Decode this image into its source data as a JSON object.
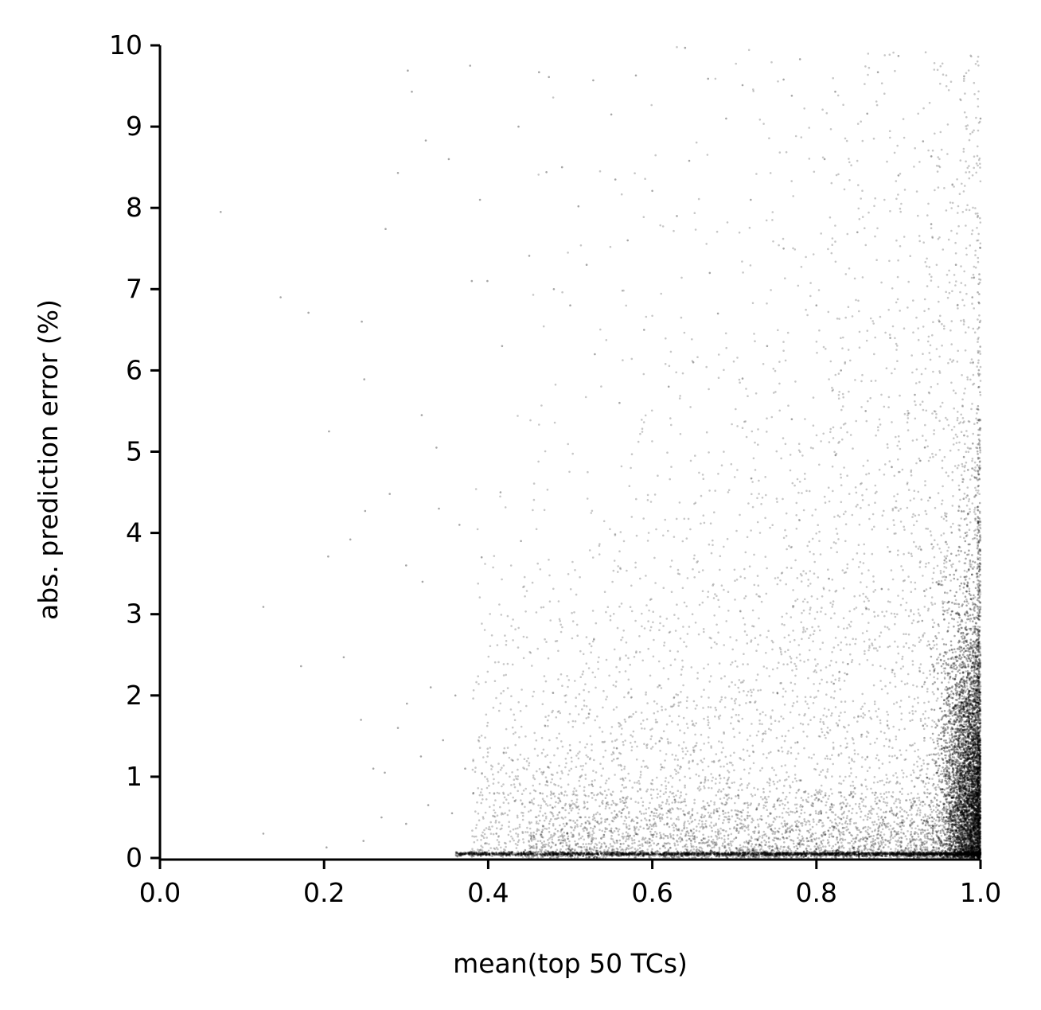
{
  "chart_data": {
    "type": "scatter",
    "title": "",
    "xlabel": "mean(top 50 TCs)",
    "ylabel": "abs. prediction error (%)",
    "xlim": [
      0.0,
      1.0
    ],
    "ylim": [
      0,
      10
    ],
    "x_ticks": [
      "0.0",
      "0.2",
      "0.4",
      "0.6",
      "0.8",
      "1.0"
    ],
    "y_ticks": [
      "0",
      "1",
      "2",
      "3",
      "4",
      "5",
      "6",
      "7",
      "8",
      "9",
      "10"
    ],
    "grid": false,
    "legend": "none",
    "point_color": "#000000",
    "points": [
      [
        0.074,
        7.95
      ],
      [
        0.147,
        6.9
      ],
      [
        0.181,
        6.71
      ],
      [
        0.206,
        5.25
      ],
      [
        0.205,
        3.71
      ],
      [
        0.126,
        3.09
      ],
      [
        0.172,
        2.36
      ],
      [
        0.224,
        2.47
      ],
      [
        0.246,
        6.6
      ],
      [
        0.249,
        5.89
      ],
      [
        0.275,
        7.74
      ],
      [
        0.29,
        8.43
      ],
      [
        0.302,
        9.69
      ],
      [
        0.307,
        9.43
      ],
      [
        0.319,
        5.45
      ],
      [
        0.324,
        8.83
      ],
      [
        0.337,
        5.05
      ],
      [
        0.352,
        8.6
      ],
      [
        0.378,
        9.75
      ],
      [
        0.38,
        7.1
      ],
      [
        0.399,
        7.1
      ],
      [
        0.417,
        6.3
      ],
      [
        0.437,
        9.0
      ],
      [
        0.45,
        7.41
      ],
      [
        0.462,
        9.67
      ],
      [
        0.474,
        9.61
      ],
      [
        0.49,
        8.5
      ],
      [
        0.528,
        9.57
      ],
      [
        0.55,
        9.15
      ],
      [
        0.58,
        9.63
      ],
      [
        0.64,
        9.97
      ],
      [
        0.668,
        9.59
      ],
      [
        0.71,
        9.51
      ],
      [
        0.76,
        9.58
      ],
      [
        0.78,
        9.83
      ],
      [
        0.875,
        9.67
      ],
      [
        0.9,
        9.87
      ],
      [
        0.98,
        9.62
      ],
      [
        1.0,
        9.1
      ],
      [
        0.93,
        8.82
      ],
      [
        0.862,
        9.16
      ],
      [
        0.823,
        9.43
      ],
      [
        0.77,
        9.38
      ],
      [
        0.69,
        9.1
      ],
      [
        0.645,
        8.58
      ],
      [
        0.6,
        8.21
      ],
      [
        0.555,
        8.35
      ],
      [
        0.51,
        8.02
      ],
      [
        0.471,
        8.44
      ],
      [
        0.39,
        8.1
      ],
      [
        0.232,
        3.92
      ],
      [
        0.25,
        4.27
      ],
      [
        0.28,
        4.48
      ],
      [
        0.3,
        3.6
      ],
      [
        0.32,
        3.4
      ],
      [
        0.34,
        4.3
      ],
      [
        0.365,
        4.1
      ],
      [
        0.392,
        3.7
      ],
      [
        0.415,
        4.5
      ],
      [
        0.44,
        3.9
      ],
      [
        0.245,
        1.7
      ],
      [
        0.26,
        1.1
      ],
      [
        0.274,
        1.05
      ],
      [
        0.29,
        1.6
      ],
      [
        0.301,
        1.9
      ],
      [
        0.318,
        1.25
      ],
      [
        0.33,
        2.1
      ],
      [
        0.345,
        1.45
      ],
      [
        0.36,
        2.0
      ],
      [
        0.372,
        1.1
      ],
      [
        0.126,
        0.3
      ],
      [
        0.203,
        0.13
      ],
      [
        0.248,
        0.21
      ],
      [
        0.27,
        0.5
      ],
      [
        0.3,
        0.42
      ],
      [
        0.327,
        0.65
      ],
      [
        0.356,
        0.55
      ],
      [
        0.382,
        0.8
      ],
      [
        0.41,
        0.3
      ],
      [
        0.43,
        1.2
      ],
      [
        0.5,
        6.8
      ],
      [
        0.53,
        6.2
      ],
      [
        0.56,
        5.6
      ],
      [
        0.59,
        6.5
      ],
      [
        0.62,
        5.8
      ],
      [
        0.65,
        6.1
      ],
      [
        0.68,
        6.7
      ],
      [
        0.71,
        5.9
      ],
      [
        0.74,
        6.3
      ],
      [
        0.77,
        5.4
      ],
      [
        0.8,
        6.8
      ],
      [
        0.83,
        6.0
      ],
      [
        0.86,
        5.5
      ],
      [
        0.89,
        6.4
      ],
      [
        0.92,
        5.7
      ],
      [
        0.95,
        6.6
      ],
      [
        0.98,
        5.2
      ],
      [
        0.99,
        6.9
      ],
      [
        0.97,
        7.3
      ],
      [
        0.94,
        7.8
      ],
      [
        0.9,
        8.4
      ],
      [
        0.85,
        7.7
      ],
      [
        0.81,
        8.6
      ],
      [
        0.76,
        7.5
      ],
      [
        0.72,
        8.1
      ],
      [
        0.67,
        7.2
      ],
      [
        0.63,
        7.9
      ],
      [
        0.57,
        7.6
      ],
      [
        0.52,
        7.3
      ],
      [
        0.48,
        7.0
      ]
    ],
    "note_density": "density increases toward x = 1.0 and y = 0"
  }
}
